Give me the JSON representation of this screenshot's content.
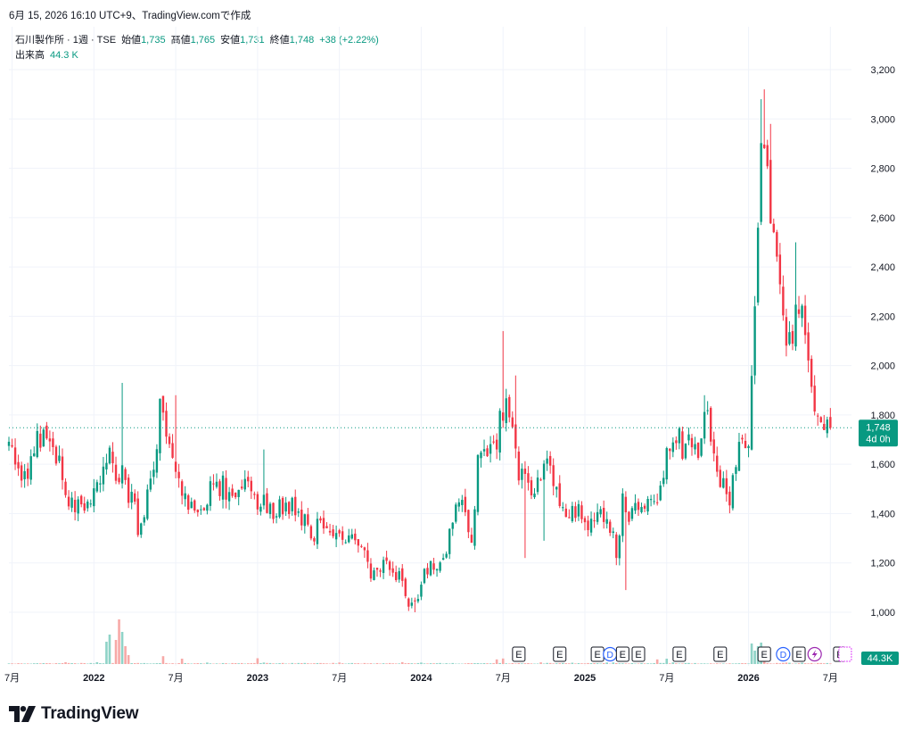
{
  "header": {
    "timestamp": "6月 15, 2026 16:10 UTC+9、TradingView.comで作成"
  },
  "legend": {
    "symbol": "石川製作所 · 1週 · TSE",
    "open_label": "始値",
    "open": "1,735",
    "high_label": "高値",
    "high": "1,765",
    "low_label": "安値",
    "low": "1,731",
    "close_label": "終値",
    "close": "1,748",
    "change": "+38 (+2.22%)",
    "volume_label": "出来高",
    "volume": "44.3 K"
  },
  "brand": {
    "name": "TradingView"
  },
  "colors": {
    "up": "#089981",
    "down": "#f23645",
    "vol_up": "#8fd3c7",
    "vol_down": "#f7a9a7",
    "grid": "#f0f3fa",
    "text": "#131722"
  },
  "chart_data": {
    "type": "candlestick",
    "interval": "1週",
    "ylim": [
      940,
      3260
    ],
    "y_ticks": [
      1000,
      1200,
      1400,
      1600,
      1800,
      2000,
      2200,
      2400,
      2600,
      2800,
      3000,
      3200
    ],
    "y_tick_labels": [
      "1,000",
      "1,200",
      "1,400",
      "1,600",
      "1,800",
      "2,000",
      "2,200",
      "2,400",
      "2,600",
      "2,800",
      "3,000",
      "3,200"
    ],
    "x_ticks": [
      {
        "label": "7月",
        "week": 1
      },
      {
        "label": "2022",
        "week": 27,
        "bold": true
      },
      {
        "label": "7月",
        "week": 53
      },
      {
        "label": "2023",
        "week": 79,
        "bold": true
      },
      {
        "label": "7月",
        "week": 105
      },
      {
        "label": "2024",
        "week": 131,
        "bold": true
      },
      {
        "label": "7月",
        "week": 157
      },
      {
        "label": "2025",
        "week": 183,
        "bold": true
      },
      {
        "label": "7月",
        "week": 209
      },
      {
        "label": "2026",
        "week": 235,
        "bold": true
      },
      {
        "label": "7月",
        "week": 261
      }
    ],
    "last_price": {
      "value": 1748,
      "label": "1,748",
      "countdown": "4d 0h"
    },
    "last_volume_label": "44.3K",
    "events": [
      {
        "type": "E",
        "week": 162
      },
      {
        "type": "E",
        "week": 175
      },
      {
        "type": "E",
        "week": 187
      },
      {
        "type": "D",
        "week": 191
      },
      {
        "type": "E",
        "week": 195
      },
      {
        "type": "E",
        "week": 200
      },
      {
        "type": "E",
        "week": 213
      },
      {
        "type": "E",
        "week": 226
      },
      {
        "type": "E",
        "week": 240
      },
      {
        "type": "D",
        "week": 246
      },
      {
        "type": "E",
        "week": 251
      },
      {
        "type": "S",
        "week": 256
      },
      {
        "type": "E",
        "week": 264
      }
    ],
    "anchors": [
      [
        0,
        1710
      ],
      [
        3,
        1560
      ],
      [
        6,
        1580
      ],
      [
        9,
        1700
      ],
      [
        12,
        1740
      ],
      [
        16,
        1600
      ],
      [
        19,
        1480
      ],
      [
        22,
        1440
      ],
      [
        25,
        1400
      ],
      [
        27,
        1480
      ],
      [
        30,
        1560
      ],
      [
        32,
        1620
      ],
      [
        36,
        1550
      ],
      [
        39,
        1450
      ],
      [
        41,
        1350
      ],
      [
        44,
        1450
      ],
      [
        46,
        1600
      ],
      [
        48,
        1840
      ],
      [
        50,
        1700
      ],
      [
        52,
        1620
      ],
      [
        55,
        1480
      ],
      [
        60,
        1440
      ],
      [
        64,
        1480
      ],
      [
        67,
        1510
      ],
      [
        70,
        1500
      ],
      [
        73,
        1460
      ],
      [
        76,
        1520
      ],
      [
        78,
        1440
      ],
      [
        82,
        1440
      ],
      [
        85,
        1420
      ],
      [
        88,
        1400
      ],
      [
        91,
        1440
      ],
      [
        94,
        1360
      ],
      [
        96,
        1320
      ],
      [
        98,
        1340
      ],
      [
        101,
        1320
      ],
      [
        104,
        1310
      ],
      [
        108,
        1300
      ],
      [
        111,
        1260
      ],
      [
        114,
        1200
      ],
      [
        116,
        1140
      ],
      [
        119,
        1200
      ],
      [
        122,
        1160
      ],
      [
        124,
        1150
      ],
      [
        127,
        1050
      ],
      [
        129,
        1020
      ],
      [
        131,
        1120
      ],
      [
        134,
        1180
      ],
      [
        136,
        1150
      ],
      [
        139,
        1260
      ],
      [
        142,
        1400
      ],
      [
        144,
        1440
      ],
      [
        147,
        1280
      ],
      [
        149,
        1600
      ],
      [
        151,
        1660
      ],
      [
        154,
        1680
      ],
      [
        156,
        1760
      ],
      [
        158,
        1880
      ],
      [
        160,
        1800
      ],
      [
        162,
        1580
      ],
      [
        164,
        1540
      ],
      [
        167,
        1500
      ],
      [
        169,
        1560
      ],
      [
        171,
        1600
      ],
      [
        174,
        1520
      ],
      [
        176,
        1420
      ],
      [
        179,
        1420
      ],
      [
        182,
        1400
      ],
      [
        185,
        1360
      ],
      [
        187,
        1440
      ],
      [
        189,
        1380
      ],
      [
        191,
        1330
      ],
      [
        193,
        1240
      ],
      [
        195,
        1440
      ],
      [
        197,
        1380
      ],
      [
        200,
        1420
      ],
      [
        203,
        1480
      ],
      [
        206,
        1420
      ],
      [
        208,
        1600
      ],
      [
        210,
        1620
      ],
      [
        213,
        1700
      ],
      [
        215,
        1650
      ],
      [
        217,
        1680
      ],
      [
        219,
        1630
      ],
      [
        221,
        1840
      ],
      [
        223,
        1700
      ],
      [
        225,
        1560
      ],
      [
        227,
        1500
      ],
      [
        229,
        1440
      ],
      [
        231,
        1600
      ],
      [
        233,
        1680
      ],
      [
        235,
        1720
      ],
      [
        237,
        2300
      ],
      [
        239,
        2900
      ],
      [
        240,
        2950
      ],
      [
        242,
        2650
      ],
      [
        244,
        2380
      ],
      [
        246,
        2150
      ],
      [
        248,
        2100
      ],
      [
        250,
        2200
      ],
      [
        252,
        2180
      ],
      [
        254,
        1980
      ],
      [
        255,
        1900
      ],
      [
        257,
        1760
      ],
      [
        259,
        1700
      ],
      [
        261,
        1748
      ]
    ],
    "spikes": [
      {
        "week": 36,
        "high": 1930
      },
      {
        "week": 53,
        "high": 1880
      },
      {
        "week": 81,
        "high": 1660
      },
      {
        "week": 157,
        "high": 2140
      },
      {
        "week": 161,
        "high": 1960
      },
      {
        "week": 221,
        "high": 1880
      },
      {
        "week": 239,
        "high": 3080
      },
      {
        "week": 240,
        "high": 3120
      },
      {
        "week": 242,
        "high": 2980
      },
      {
        "week": 250,
        "high": 2500
      },
      {
        "week": 252,
        "high": 2250
      }
    ],
    "low_spikes": [
      {
        "week": 164,
        "low": 1220
      },
      {
        "week": 170,
        "low": 1290
      },
      {
        "week": 196,
        "low": 1090
      },
      {
        "week": 129,
        "low": 1000
      }
    ],
    "volume_spikes": [
      {
        "week": 31,
        "v": 250
      },
      {
        "week": 32,
        "v": 330
      },
      {
        "week": 34,
        "v": 270
      },
      {
        "week": 35,
        "v": 500
      },
      {
        "week": 36,
        "v": 360
      },
      {
        "week": 37,
        "v": 200
      },
      {
        "week": 38,
        "v": 100
      },
      {
        "week": 49,
        "v": 88
      },
      {
        "week": 55,
        "v": 60
      },
      {
        "week": 79,
        "v": 65
      },
      {
        "week": 155,
        "v": 52
      },
      {
        "week": 157,
        "v": 62
      },
      {
        "week": 206,
        "v": 52
      },
      {
        "week": 209,
        "v": 60
      },
      {
        "week": 236,
        "v": 230
      },
      {
        "week": 237,
        "v": 150
      },
      {
        "week": 238,
        "v": 200
      },
      {
        "week": 239,
        "v": 240
      },
      {
        "week": 240,
        "v": 115
      }
    ]
  }
}
